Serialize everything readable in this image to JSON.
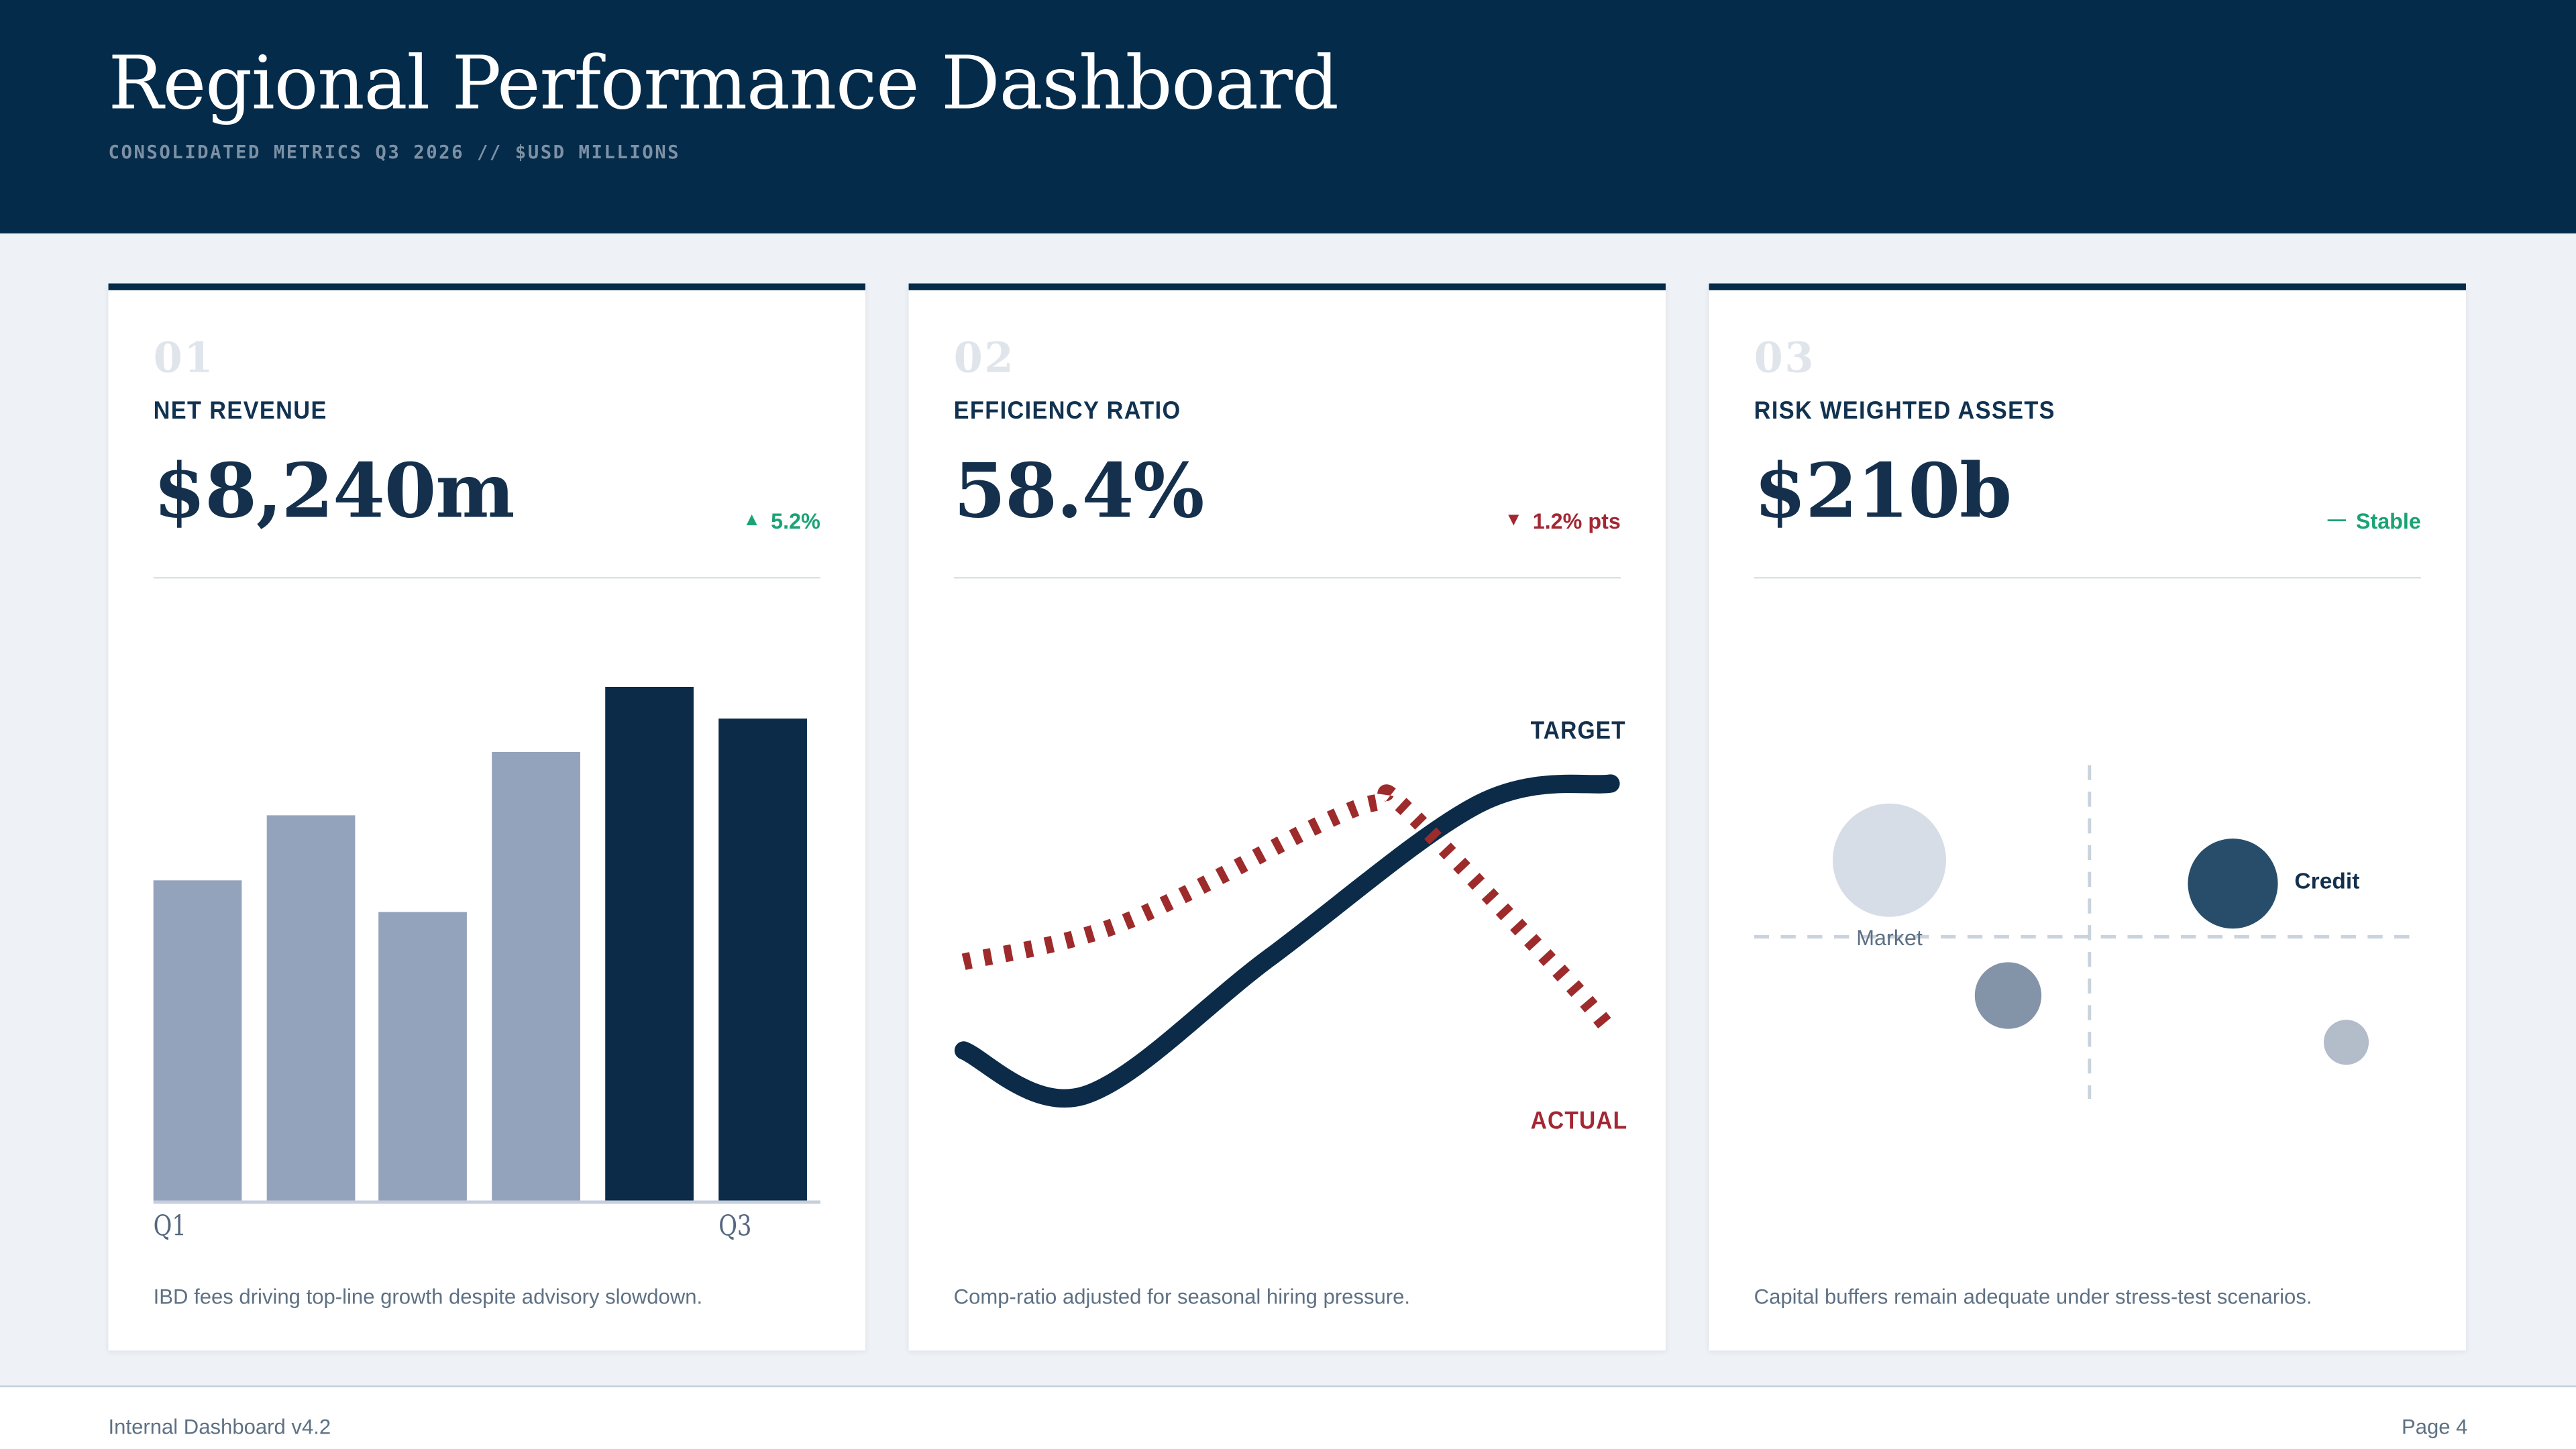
{
  "header": {
    "title": "Regional Performance Dashboard",
    "subtitle": "CONSOLIDATED METRICS Q3 2026 // $USD MILLIONS"
  },
  "cards": [
    {
      "index": "01",
      "label": "NET REVENUE",
      "value": "$8,240m",
      "trend_icon": "▲",
      "trend_text": "5.2%",
      "trend_color": "green",
      "note": "IBD fees driving top-line growth despite advisory slowdown."
    },
    {
      "index": "02",
      "label": "EFFICIENCY RATIO",
      "value": "58.4%",
      "trend_icon": "▼",
      "trend_text": "1.2% pts",
      "trend_color": "red",
      "note": "Comp-ratio adjusted for seasonal hiring pressure."
    },
    {
      "index": "03",
      "label": "RISK WEIGHTED ASSETS",
      "value": "$210b",
      "trend_icon": "—",
      "trend_text": "Stable",
      "trend_color": "green",
      "note": "Capital buffers remain adequate under stress-test scenarios."
    }
  ],
  "footer": {
    "left": "Internal Dashboard v4.2",
    "right": "Page 4"
  },
  "colors": {
    "navy": "#052b4a",
    "text_navy": "#14304c",
    "bar_base": "#94a3bc",
    "bar_highlight": "#0b2b48",
    "line_target": "#0b2b48",
    "line_actual": "#9e2b2b",
    "green": "#1aa374",
    "red": "#a32733",
    "grid": "#c9d2dd"
  },
  "chart_data": [
    {
      "type": "bar",
      "title": "Net revenue trend (unlabeled axis, 6 quarterly bars)",
      "values_pct_of_max": [
        62,
        75,
        56,
        87,
        100,
        94
      ],
      "heights_pct_of_plot": [
        58.9,
        70.9,
        53.1,
        82.5,
        94.5,
        88.7
      ],
      "highlight_from_index": 4,
      "base_color": "#94a3bc",
      "highlight_color": "#0b2b48",
      "x_tick_labels": [
        {
          "label": "Q1",
          "bar_index": 0
        },
        {
          "label": "Q3",
          "bar_index": 5
        }
      ],
      "grid": "off"
    },
    {
      "type": "line",
      "title": "Efficiency ratio: target vs actual (unlabeled axes)",
      "coords_note": "points are [x_pct, y_pct] of plot area, y measured from top",
      "series": [
        {
          "label": "TARGET",
          "style": "solid",
          "color": "#0b2b48",
          "points_pct": [
            [
              1.5,
              72.4
            ],
            [
              19.5,
              80.7
            ],
            [
              47.5,
              55.2
            ],
            [
              78.8,
              27.0
            ],
            [
              98.5,
              23.3
            ]
          ]
        },
        {
          "label": "ACTUAL",
          "style": "dashed",
          "color": "#9e2b2b",
          "points_pct": [
            [
              1.5,
              56.1
            ],
            [
              25,
              49.1
            ],
            [
              55,
              30.7
            ],
            [
              63.8,
              26.7
            ],
            [
              67.5,
              27.6
            ],
            [
              90,
              56.7
            ],
            [
              98.5,
              68.7
            ]
          ]
        }
      ],
      "legend_position": "target top-right, actual bottom-right"
    },
    {
      "type": "scatter",
      "title": "Risk weighted assets quadrant bubbles (unlabeled axes)",
      "coords_note": "x_pct/y_pct of plot area, y measured from top; r in plot px",
      "axes": {
        "h_line_y_pct": 51.5,
        "v_line_x_pct": 50.3,
        "v_line_y1_pct": 19.9,
        "v_line_y2_pct": 81.3,
        "style": "dashed",
        "color": "#c9d2dd"
      },
      "bubbles": [
        {
          "name": "Market",
          "x_pct": 20.3,
          "y_pct": 37.4,
          "r": 34,
          "color": "#d6dde7",
          "label": "Market",
          "label_pos": "below"
        },
        {
          "name": "Credit",
          "x_pct": 71.8,
          "y_pct": 41.7,
          "r": 27,
          "color": "#284d6a",
          "label": "Credit",
          "label_pos": "right"
        },
        {
          "name": "unlabeled-medium",
          "x_pct": 38.1,
          "y_pct": 62.3,
          "r": 20,
          "color": "#8494a8",
          "label": null,
          "label_pos": null
        },
        {
          "name": "unlabeled-small",
          "x_pct": 88.8,
          "y_pct": 70.9,
          "r": 13.5,
          "color": "#b3bcc9",
          "label": null,
          "label_pos": null
        }
      ]
    }
  ]
}
